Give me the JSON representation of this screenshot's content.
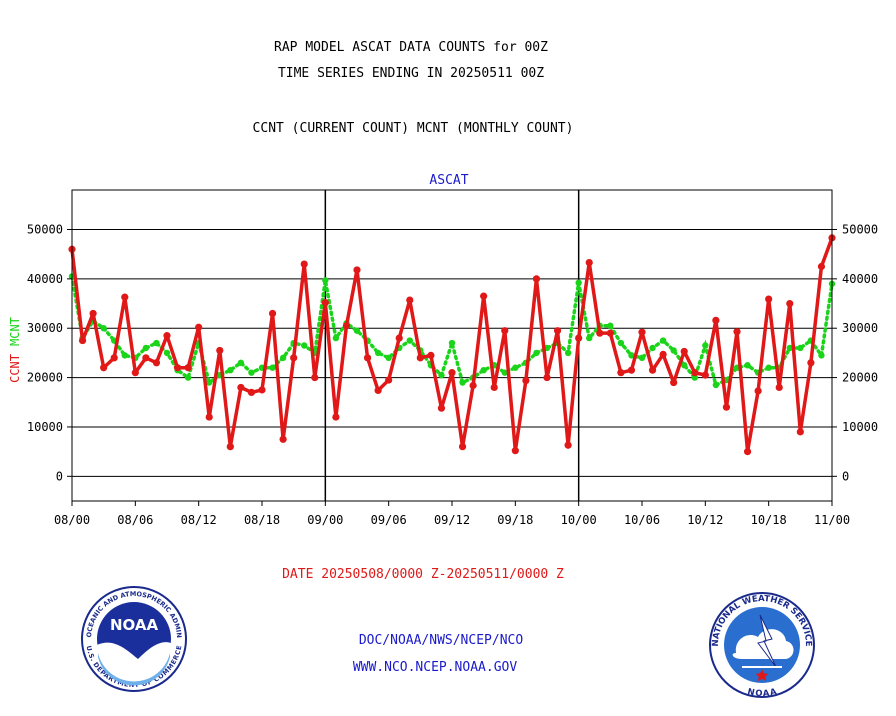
{
  "titles": {
    "line1": "RAP MODEL ASCAT DATA COUNTS for 00Z",
    "line2": "TIME SERIES ENDING IN 20250511 00Z",
    "line3": "CCNT (CURRENT COUNT) MCNT (MONTHLY COUNT)"
  },
  "footer": {
    "date_range": "DATE 20250508/0000 Z-20250511/0000 Z",
    "org": "DOC/NOAA/NWS/NCEP/NCO",
    "url": "WWW.NCO.NCEP.NOAA.GOV"
  },
  "logos": {
    "left": {
      "name": "noaa-logo",
      "center_text": "NOAA",
      "ring_top": "NATIONAL OCEANIC AND ATMOSPHERIC ADMINISTRATION",
      "ring_bottom": "U.S. DEPARTMENT OF COMMERCE"
    },
    "right": {
      "name": "nws-logo",
      "ring_top": "NATIONAL WEATHER SERVICE",
      "ring_bottom": "NOAA"
    }
  },
  "colors": {
    "ccnt": "#e01818",
    "mcnt": "#19d419",
    "title_blue": "#1a1acc"
  },
  "chart_data": {
    "type": "line",
    "title": "ASCAT",
    "ylabel_left": [
      "CCNT",
      "MCNT"
    ],
    "ylim": [
      -5000,
      58000
    ],
    "yticks": [
      0,
      10000,
      20000,
      30000,
      40000,
      50000
    ],
    "x_tick_labels": [
      "08/00",
      "08/06",
      "08/12",
      "08/18",
      "09/00",
      "09/06",
      "09/12",
      "09/18",
      "10/00",
      "10/06",
      "10/12",
      "10/18",
      "11/00"
    ],
    "x_tick_hours": [
      0,
      6,
      12,
      18,
      24,
      30,
      36,
      42,
      48,
      54,
      60,
      66,
      72
    ],
    "day_separators_hours": [
      24,
      48
    ],
    "grid": true,
    "series": [
      {
        "name": "CCNT",
        "x_hours": [
          0,
          1,
          2,
          3,
          4,
          5,
          6,
          7,
          8,
          9,
          10,
          11,
          12,
          13,
          14,
          15,
          16,
          17,
          18,
          19,
          20,
          21,
          22,
          23,
          24,
          25,
          26,
          27,
          28,
          29,
          30,
          31,
          32,
          33,
          34,
          35,
          36,
          37,
          38,
          39,
          40,
          41,
          42,
          43,
          44,
          45,
          46,
          47,
          48,
          49,
          50,
          51,
          52,
          53,
          54,
          55,
          56,
          57,
          58,
          59,
          60,
          61,
          62,
          63,
          64,
          65,
          66,
          67,
          68,
          69,
          70,
          71,
          72
        ],
        "values": [
          46000,
          27500,
          33000,
          22000,
          24000,
          36300,
          21000,
          24000,
          23000,
          28500,
          22000,
          22000,
          30200,
          12000,
          25500,
          6000,
          18000,
          17000,
          17500,
          33000,
          7500,
          24000,
          43000,
          20000,
          35200,
          12000,
          30500,
          41800,
          24000,
          17400,
          19500,
          28000,
          35700,
          24000,
          24500,
          13800,
          21000,
          6000,
          18400,
          36500,
          18000,
          29500,
          5200,
          19400,
          40000,
          20000,
          29500,
          6300,
          28000,
          43300,
          29000,
          29000,
          21000,
          21500,
          29200,
          21500,
          24700,
          19000,
          25300,
          21000,
          20500,
          31600,
          14000,
          29300,
          5000,
          17300,
          35900,
          18000,
          35000,
          9000,
          23000,
          42500,
          48300
        ]
      },
      {
        "name": "MCNT",
        "x_hours": [
          0,
          1,
          2,
          3,
          4,
          5,
          6,
          7,
          8,
          9,
          10,
          11,
          12,
          13,
          14,
          15,
          16,
          17,
          18,
          19,
          20,
          21,
          22,
          23,
          24,
          25,
          26,
          27,
          28,
          29,
          30,
          31,
          32,
          33,
          34,
          35,
          36,
          37,
          38,
          39,
          40,
          41,
          42,
          43,
          44,
          45,
          46,
          47,
          48,
          49,
          50,
          51,
          52,
          53,
          54,
          55,
          56,
          57,
          58,
          59,
          60,
          61,
          62,
          63,
          64,
          65,
          66,
          67,
          68,
          69,
          70,
          71,
          72
        ],
        "values": [
          40500,
          28000,
          31500,
          30000,
          27500,
          24500,
          24000,
          26000,
          27000,
          25000,
          21500,
          20000,
          27000,
          19000,
          20500,
          21500,
          23000,
          21000,
          22000,
          22000,
          24000,
          27000,
          26500,
          25000,
          39700,
          28000,
          31000,
          29500,
          27500,
          25000,
          24000,
          26000,
          27500,
          25500,
          22500,
          20500,
          27000,
          19000,
          20000,
          21500,
          22500,
          21000,
          22000,
          23000,
          25000,
          26000,
          27000,
          25000,
          39200,
          28000,
          30500,
          30500,
          27000,
          24500,
          24000,
          26000,
          27500,
          25500,
          22500,
          20000,
          26500,
          18500,
          19500,
          22000,
          22500,
          21000,
          22000,
          22000,
          26000,
          26000,
          27500,
          24500,
          39000
        ]
      }
    ]
  }
}
